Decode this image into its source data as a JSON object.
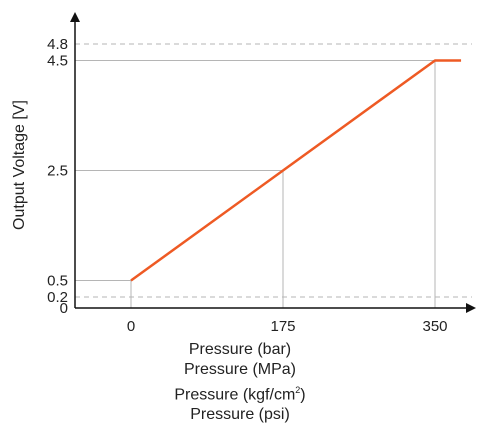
{
  "chart_data": {
    "type": "line",
    "ylabel": "Output Voltage [V]",
    "xlabels": [
      "Pressure (bar)",
      "Pressure (MPa)",
      "Pressure (kgf/cm²)",
      "Pressure (psi)"
    ],
    "x_ticks": [
      "0",
      "175",
      "350"
    ],
    "y_ticks": [
      "0",
      "0.2",
      "0.5",
      "2.5",
      "4.5",
      "4.8"
    ],
    "xlim": [
      -50,
      380
    ],
    "ylim": [
      0,
      4.8
    ],
    "series": [
      {
        "x": [
          0,
          175,
          350,
          380
        ],
        "y": [
          0.5,
          2.5,
          4.5,
          4.5
        ],
        "color": "#ee5a24"
      }
    ],
    "dashed_limits": [
      0.2,
      4.8
    ],
    "guides": [
      [
        0,
        0.5
      ],
      [
        175,
        2.5
      ],
      [
        350,
        4.5
      ]
    ]
  }
}
